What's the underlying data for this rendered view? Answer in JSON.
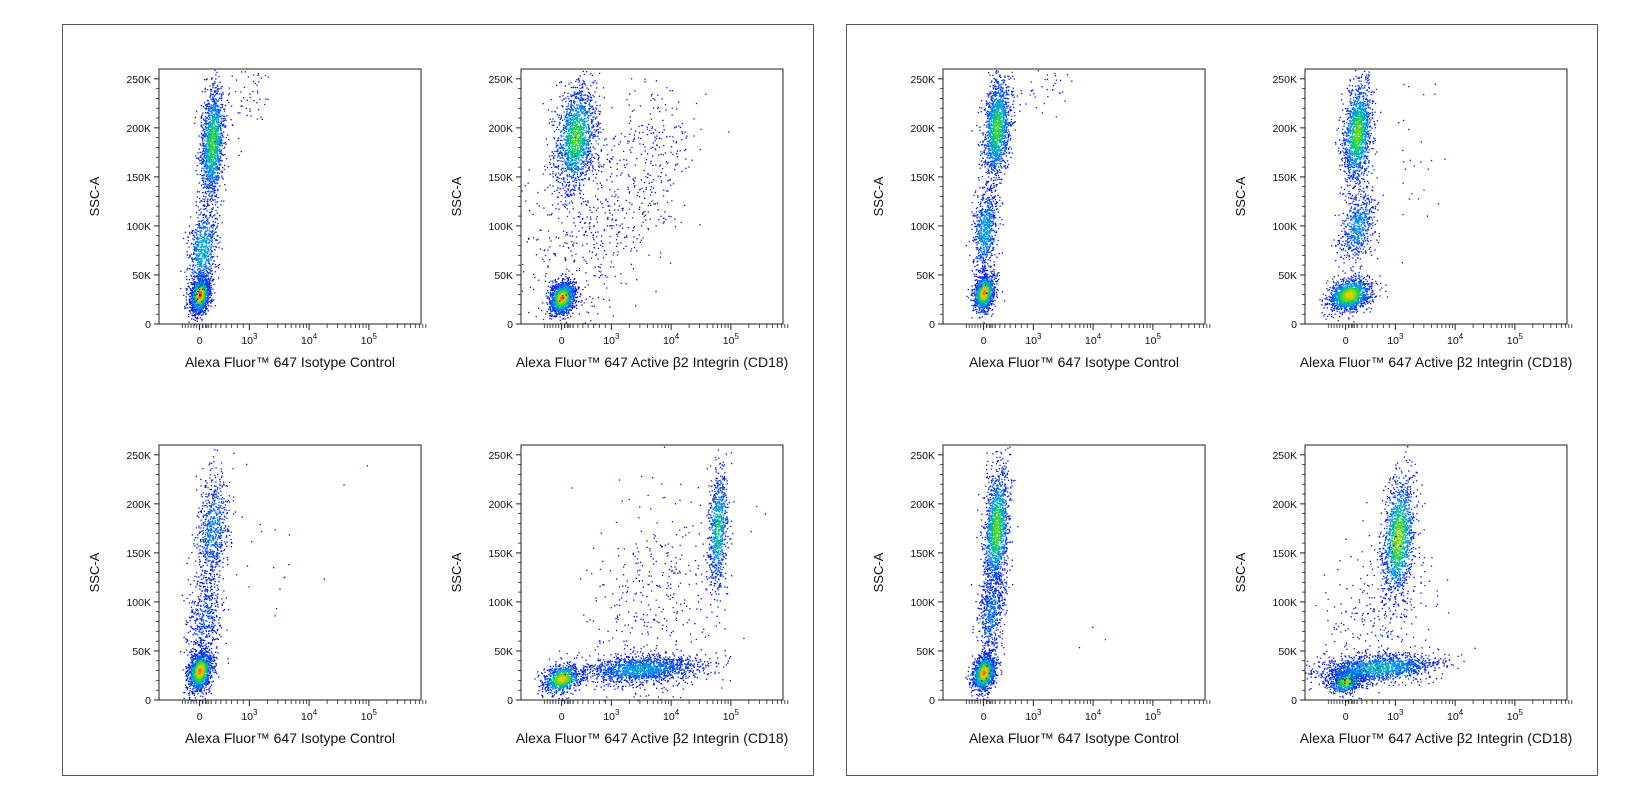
{
  "groups": [
    {
      "panels": [
        {
          "chart_data": {
            "type": "scatter",
            "xlabel": "Alexa Fluor™ 647 Isotype Control",
            "ylabel": "SSC-A",
            "y_ticks": [
              "0",
              "50K",
              "100K",
              "150K",
              "200K",
              "250K"
            ],
            "x_ticks": [
              "0",
              "10^3",
              "10^4",
              "10^5"
            ],
            "ylim": [
              0,
              260000
            ],
            "x_scale": "biexponential",
            "populations": [
              {
                "x": 0,
                "y": 30000,
                "sx": 140,
                "sy": 9000,
                "n": 1400,
                "hot": 0.95
              },
              {
                "x": 80,
                "y": 75000,
                "sx": 180,
                "sy": 22000,
                "n": 700,
                "hot": 0.35
              },
              {
                "x": 320,
                "y": 185000,
                "sx": 120,
                "sy": 28000,
                "n": 1500,
                "hot": 0.55
              },
              {
                "x": 1000,
                "y": 230000,
                "sx": 900,
                "sy": 20000,
                "n": 60,
                "hot": 0.0
              }
            ]
          }
        },
        {
          "chart_data": {
            "type": "scatter",
            "xlabel": "Alexa Fluor™ 647 Active β2 Integrin (CD18)",
            "ylabel": "SSC-A",
            "y_ticks": [
              "0",
              "50K",
              "100K",
              "150K",
              "200K",
              "250K"
            ],
            "x_ticks": [
              "0",
              "10^3",
              "10^4",
              "10^5"
            ],
            "ylim": [
              0,
              260000
            ],
            "x_scale": "biexponential",
            "populations": [
              {
                "x": 0,
                "y": 27000,
                "sx": 180,
                "sy": 8000,
                "n": 1400,
                "hot": 0.9
              },
              {
                "x": 350,
                "y": 190000,
                "sx": 200,
                "sy": 25000,
                "n": 1600,
                "hot": 0.55
              },
              {
                "x": 600,
                "y": 100000,
                "sx": 900,
                "sy": 45000,
                "n": 500,
                "hot": 0.0
              },
              {
                "x": 5000,
                "y": 170000,
                "sx": 6000,
                "sy": 40000,
                "n": 250,
                "hot": 0.0
              }
            ]
          }
        },
        {
          "chart_data": {
            "type": "scatter",
            "xlabel": "Alexa Fluor™ 647 Isotype Control",
            "ylabel": "SSC-A",
            "y_ticks": [
              "0",
              "50K",
              "100K",
              "150K",
              "200K",
              "250K"
            ],
            "x_ticks": [
              "0",
              "10^3",
              "10^4",
              "10^5"
            ],
            "ylim": [
              0,
              260000
            ],
            "x_scale": "biexponential",
            "populations": [
              {
                "x": 0,
                "y": 30000,
                "sx": 170,
                "sy": 10000,
                "n": 1400,
                "hot": 0.9
              },
              {
                "x": 150,
                "y": 85000,
                "sx": 200,
                "sy": 25000,
                "n": 500,
                "hot": 0.1
              },
              {
                "x": 330,
                "y": 175000,
                "sx": 160,
                "sy": 28000,
                "n": 700,
                "hot": 0.2
              },
              {
                "x": 2000,
                "y": 150000,
                "sx": 6000,
                "sy": 50000,
                "n": 25,
                "hot": 0.0
              }
            ]
          }
        },
        {
          "chart_data": {
            "type": "scatter",
            "xlabel": "Alexa Fluor™ 647 Active β2 Integrin (CD18)",
            "ylabel": "SSC-A",
            "y_ticks": [
              "0",
              "50K",
              "100K",
              "150K",
              "200K",
              "250K"
            ],
            "x_ticks": [
              "0",
              "10^3",
              "10^4",
              "10^5"
            ],
            "ylim": [
              0,
              260000
            ],
            "x_scale": "biexponential",
            "populations": [
              {
                "x": 0,
                "y": 22000,
                "sx": 250,
                "sy": 7000,
                "n": 900,
                "hot": 0.8
              },
              {
                "x": 3000,
                "y": 32000,
                "sx": 6000,
                "sy": 7000,
                "n": 1600,
                "hot": 0.3
              },
              {
                "x": 60000,
                "y": 175000,
                "sx": 12000,
                "sy": 30000,
                "n": 800,
                "hot": 0.45
              },
              {
                "x": 5000,
                "y": 100000,
                "sx": 15000,
                "sy": 60000,
                "n": 400,
                "hot": 0.0
              }
            ]
          }
        }
      ]
    },
    {
      "panels": [
        {
          "chart_data": {
            "type": "scatter",
            "xlabel": "Alexa Fluor™ 647 Isotype Control",
            "ylabel": "SSC-A",
            "y_ticks": [
              "0",
              "50K",
              "100K",
              "150K",
              "200K",
              "250K"
            ],
            "x_ticks": [
              "0",
              "10^3",
              "10^4",
              "10^5"
            ],
            "ylim": [
              0,
              260000
            ],
            "x_scale": "biexponential",
            "populations": [
              {
                "x": 0,
                "y": 32000,
                "sx": 150,
                "sy": 9000,
                "n": 1200,
                "hot": 0.9
              },
              {
                "x": 40,
                "y": 95000,
                "sx": 160,
                "sy": 22000,
                "n": 700,
                "hot": 0.3
              },
              {
                "x": 330,
                "y": 200000,
                "sx": 140,
                "sy": 25000,
                "n": 1500,
                "hot": 0.55
              },
              {
                "x": 1500,
                "y": 240000,
                "sx": 1500,
                "sy": 12000,
                "n": 40,
                "hot": 0.0
              }
            ]
          }
        },
        {
          "chart_data": {
            "type": "scatter",
            "xlabel": "Alexa Fluor™ 647 Active β2 Integrin (CD18)",
            "ylabel": "SSC-A",
            "y_ticks": [
              "0",
              "50K",
              "100K",
              "150K",
              "200K",
              "250K"
            ],
            "x_ticks": [
              "0",
              "10^3",
              "10^4",
              "10^5"
            ],
            "ylim": [
              0,
              260000
            ],
            "x_scale": "biexponential",
            "populations": [
              {
                "x": 100,
                "y": 30000,
                "sx": 250,
                "sy": 8000,
                "n": 1400,
                "hot": 0.8
              },
              {
                "x": 300,
                "y": 100000,
                "sx": 180,
                "sy": 18000,
                "n": 600,
                "hot": 0.25
              },
              {
                "x": 300,
                "y": 195000,
                "sx": 150,
                "sy": 25000,
                "n": 1500,
                "hot": 0.6
              },
              {
                "x": 1500,
                "y": 150000,
                "sx": 1500,
                "sy": 50000,
                "n": 30,
                "hot": 0.0
              }
            ]
          }
        },
        {
          "chart_data": {
            "type": "scatter",
            "xlabel": "Alexa Fluor™ 647 Isotype Control",
            "ylabel": "SSC-A",
            "y_ticks": [
              "0",
              "50K",
              "100K",
              "150K",
              "200K",
              "250K"
            ],
            "x_ticks": [
              "0",
              "10^3",
              "10^4",
              "10^5"
            ],
            "ylim": [
              0,
              260000
            ],
            "x_scale": "biexponential",
            "populations": [
              {
                "x": 0,
                "y": 28000,
                "sx": 160,
                "sy": 9000,
                "n": 1300,
                "hot": 0.9
              },
              {
                "x": 200,
                "y": 90000,
                "sx": 150,
                "sy": 22000,
                "n": 600,
                "hot": 0.2
              },
              {
                "x": 320,
                "y": 175000,
                "sx": 130,
                "sy": 30000,
                "n": 1500,
                "hot": 0.6
              },
              {
                "x": 8000,
                "y": 60000,
                "sx": 6000,
                "sy": 10000,
                "n": 3,
                "hot": 0.0
              }
            ]
          }
        },
        {
          "chart_data": {
            "type": "scatter",
            "xlabel": "Alexa Fluor™ 647 Active β2 Integrin (CD18)",
            "ylabel": "SSC-A",
            "y_ticks": [
              "0",
              "50K",
              "100K",
              "150K",
              "200K",
              "250K"
            ],
            "x_ticks": [
              "0",
              "10^3",
              "10^4",
              "10^5"
            ],
            "ylim": [
              0,
              260000
            ],
            "x_scale": "biexponential",
            "populations": [
              {
                "x": 0,
                "y": 20000,
                "sx": 220,
                "sy": 6000,
                "n": 800,
                "hot": 0.7
              },
              {
                "x": 700,
                "y": 33000,
                "sx": 900,
                "sy": 7000,
                "n": 1500,
                "hot": 0.35
              },
              {
                "x": 1100,
                "y": 165000,
                "sx": 400,
                "sy": 30000,
                "n": 1500,
                "hot": 0.65
              },
              {
                "x": 700,
                "y": 90000,
                "sx": 700,
                "sy": 40000,
                "n": 250,
                "hot": 0.0
              }
            ]
          }
        }
      ]
    }
  ]
}
